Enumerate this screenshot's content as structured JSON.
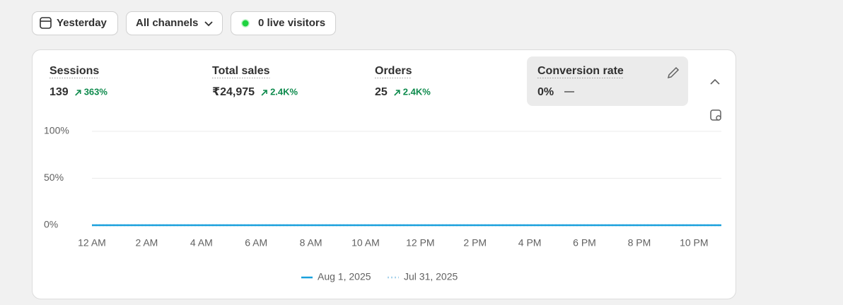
{
  "toolbar": {
    "date": "Yesterday",
    "channel": "All channels",
    "live": "0 live visitors"
  },
  "metrics": [
    {
      "label": "Sessions",
      "value": "139",
      "change": "363%"
    },
    {
      "label": "Total sales",
      "value": "₹24,975",
      "change": "2.4K%"
    },
    {
      "label": "Orders",
      "value": "25",
      "change": "2.4K%"
    },
    {
      "label": "Conversion rate",
      "value": "0%"
    }
  ],
  "chart_data": {
    "type": "line",
    "categories": [
      "12 AM",
      null,
      "2 AM",
      null,
      "4 AM",
      null,
      "6 AM",
      null,
      "8 AM",
      null,
      "10 AM",
      null,
      "12 PM",
      null,
      "2 PM",
      null,
      "4 PM",
      null,
      "6 PM",
      null,
      "8 PM",
      null,
      "10 PM",
      null
    ],
    "series": [
      {
        "name": "Aug 1, 2025",
        "color": "#1aa0dc",
        "values": [
          0,
          0,
          0,
          0,
          0,
          0,
          0,
          0,
          0,
          0,
          0,
          0,
          0,
          0,
          0,
          0,
          0,
          0,
          0,
          0,
          0,
          0,
          0,
          0
        ]
      },
      {
        "name": "Jul 31, 2025",
        "color": "#a9d3ec",
        "values": [
          0,
          0,
          0,
          0,
          0,
          0,
          0,
          0,
          0,
          0,
          0,
          0,
          0,
          0,
          0,
          0,
          0,
          0,
          0,
          0,
          0,
          0,
          0,
          0
        ]
      }
    ],
    "ylim": [
      0,
      100
    ],
    "yticks": [
      {
        "value": 0,
        "label": "0%"
      },
      {
        "value": 50,
        "label": "50%"
      },
      {
        "value": 100,
        "label": "100%"
      }
    ],
    "grid": true
  }
}
